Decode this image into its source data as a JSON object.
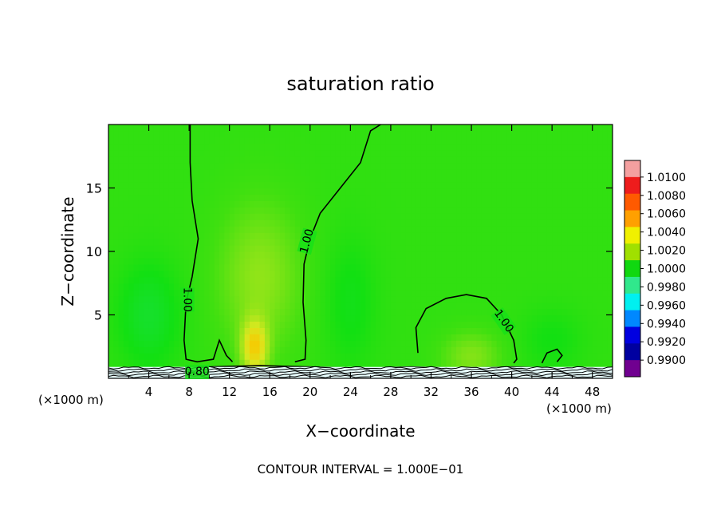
{
  "chart_data": {
    "type": "heatmap",
    "title": "saturation ratio",
    "xlabel": "X−coordinate",
    "ylabel": "Z−coordinate",
    "x_unit_left": "(×1000 m)",
    "x_unit_right": "(×1000 m)",
    "footer": "CONTOUR INTERVAL = 1.000E−01",
    "xlim": [
      0,
      50
    ],
    "ylim": [
      0,
      20
    ],
    "x_ticks": [
      4,
      8,
      12,
      16,
      20,
      24,
      28,
      32,
      36,
      40,
      44,
      48
    ],
    "x_tick_labels": [
      "4",
      "8",
      "12",
      "16",
      "20",
      "24",
      "28",
      "32",
      "36",
      "40",
      "44",
      "48"
    ],
    "y_ticks": [
      5,
      10,
      15
    ],
    "y_tick_labels": [
      "5",
      "10",
      "15"
    ],
    "background_value": 1.0004,
    "features": [
      {
        "x": 15,
        "z": 8,
        "sx": 4.2,
        "sz": 6,
        "value": 0.0008
      },
      {
        "x": 14.5,
        "z": 2.5,
        "sx": 1.2,
        "sz": 2,
        "value": 0.0022
      },
      {
        "x": 36,
        "z": 1.8,
        "sx": 3,
        "sz": 2,
        "value": 0.0007
      },
      {
        "x": 4,
        "z": 5,
        "sx": 3,
        "sz": 4,
        "value": -0.0008
      },
      {
        "x": 24,
        "z": 6,
        "sx": 2.5,
        "sz": 5,
        "value": -0.0005
      },
      {
        "x": 44,
        "z": 3,
        "sx": 3,
        "sz": 2.5,
        "value": -0.0004
      }
    ],
    "contours": [
      {
        "label": "1.00",
        "label_x": 7.8,
        "label_z": 6.2,
        "label_angle": 90,
        "points": [
          [
            8.1,
            20
          ],
          [
            8.1,
            17
          ],
          [
            8.3,
            14
          ],
          [
            8.9,
            11
          ],
          [
            8.3,
            8
          ],
          [
            7.7,
            6
          ],
          [
            7.5,
            3
          ],
          [
            7.7,
            1.5
          ],
          [
            8.8,
            1.3
          ],
          [
            10.4,
            1.5
          ],
          [
            11.0,
            3
          ],
          [
            11.7,
            1.8
          ],
          [
            12.3,
            1.3
          ]
        ]
      },
      {
        "label": "1.00",
        "label_x": 19.7,
        "label_z": 10.8,
        "label_angle": -75,
        "points": [
          [
            27.0,
            20
          ],
          [
            26.0,
            19.5
          ],
          [
            25.0,
            17
          ],
          [
            23.0,
            15
          ],
          [
            21.0,
            13
          ],
          [
            20.0,
            11
          ],
          [
            19.4,
            9
          ],
          [
            19.3,
            6
          ],
          [
            19.6,
            3
          ],
          [
            19.5,
            1.5
          ],
          [
            18.5,
            1.3
          ]
        ]
      },
      {
        "label": "1.00",
        "label_x": 39.2,
        "label_z": 4.5,
        "label_angle": 55,
        "points": [
          [
            30.7,
            2
          ],
          [
            30.5,
            4
          ],
          [
            31.5,
            5.5
          ],
          [
            33.5,
            6.3
          ],
          [
            35.5,
            6.6
          ],
          [
            37.5,
            6.3
          ],
          [
            39.0,
            5
          ],
          [
            40.2,
            3
          ],
          [
            40.5,
            1.5
          ],
          [
            40.2,
            1.2
          ]
        ]
      },
      {
        "label": "",
        "label_x": 0,
        "label_z": 0,
        "label_angle": 0,
        "points": [
          [
            43,
            1.2
          ],
          [
            43.5,
            2
          ],
          [
            44.5,
            2.3
          ],
          [
            45,
            1.8
          ],
          [
            44.5,
            1.3
          ]
        ]
      },
      {
        "label": "0.80",
        "label_x": 8.8,
        "label_z": 0.5,
        "label_angle": 0,
        "points": [
          [
            0,
            0.7
          ],
          [
            5,
            0.8
          ],
          [
            10,
            0.9
          ],
          [
            15,
            1.0
          ],
          [
            20,
            0.9
          ],
          [
            25,
            0.8
          ],
          [
            30,
            0.9
          ],
          [
            35,
            0.8
          ],
          [
            40,
            0.9
          ],
          [
            45,
            0.8
          ],
          [
            50,
            0.7
          ]
        ]
      }
    ],
    "colorbar": {
      "levels": [
        "1.0100",
        "1.0080",
        "1.0060",
        "1.0040",
        "1.0020",
        "1.0000",
        "0.9980",
        "0.9960",
        "0.9940",
        "0.9920",
        "0.9900"
      ],
      "colors": [
        "#f4a0a0",
        "#ee1c1c",
        "#ff5a00",
        "#ffa000",
        "#f0f000",
        "#a0e000",
        "#10d810",
        "#30e88c",
        "#00f0f0",
        "#0088ff",
        "#0000e0",
        "#0000a0",
        "#700090"
      ]
    }
  }
}
